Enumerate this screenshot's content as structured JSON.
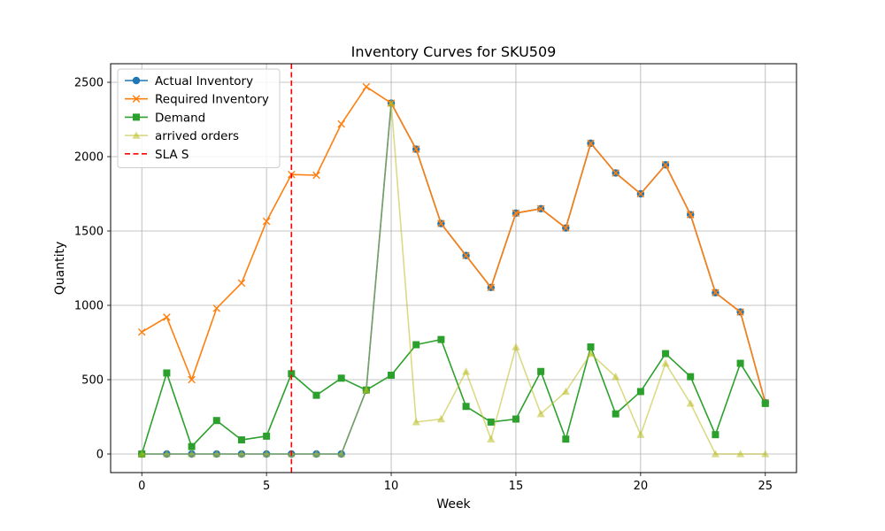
{
  "chart_data": {
    "type": "line",
    "title": "Inventory Curves for SKU509",
    "xlabel": "Week",
    "ylabel": "Quantity",
    "xlim": [
      -1.25,
      26.25
    ],
    "ylim": [
      -125,
      2625
    ],
    "xticks": [
      0,
      5,
      10,
      15,
      20,
      25
    ],
    "yticks": [
      0,
      500,
      1000,
      1500,
      2000,
      2500
    ],
    "grid": true,
    "legend_position": "upper-left",
    "x": [
      0,
      1,
      2,
      3,
      4,
      5,
      6,
      7,
      8,
      9,
      10,
      11,
      12,
      13,
      14,
      15,
      16,
      17,
      18,
      19,
      20,
      21,
      22,
      23,
      24,
      25
    ],
    "series": [
      {
        "name": "Actual Inventory",
        "color": "#1f77b4",
        "marker": "circle",
        "alpha": 1,
        "values": [
          0,
          0,
          0,
          0,
          0,
          0,
          0,
          0,
          0,
          430,
          2360,
          2050,
          1550,
          1335,
          1120,
          1620,
          1650,
          1520,
          2090,
          1890,
          1750,
          1945,
          1610,
          1085,
          955,
          345
        ]
      },
      {
        "name": "Required Inventory",
        "color": "#ff7f0e",
        "marker": "x",
        "alpha": 1,
        "values": [
          820,
          920,
          500,
          980,
          1150,
          1565,
          1880,
          1875,
          2220,
          2470,
          2360,
          2050,
          1550,
          1335,
          1120,
          1620,
          1650,
          1520,
          2090,
          1890,
          1750,
          1945,
          1610,
          1085,
          955,
          345
        ]
      },
      {
        "name": "Demand",
        "color": "#2ca02c",
        "marker": "square",
        "alpha": 1,
        "values": [
          0,
          545,
          50,
          225,
          95,
          120,
          540,
          395,
          510,
          430,
          530,
          735,
          770,
          320,
          215,
          235,
          555,
          100,
          720,
          270,
          420,
          675,
          520,
          130,
          610,
          340
        ]
      },
      {
        "name": "arrived orders",
        "color": "#bcbd22",
        "marker": "triangle",
        "alpha": 0.55,
        "values": [
          0,
          0,
          0,
          0,
          0,
          0,
          0,
          0,
          0,
          430,
          2360,
          215,
          235,
          555,
          100,
          720,
          270,
          420,
          675,
          520,
          130,
          610,
          340,
          0,
          0,
          0
        ]
      }
    ],
    "annotations": [
      {
        "type": "vline",
        "x": 6,
        "name": "SLA S",
        "color": "#ff0000",
        "style": "dashed"
      }
    ]
  }
}
